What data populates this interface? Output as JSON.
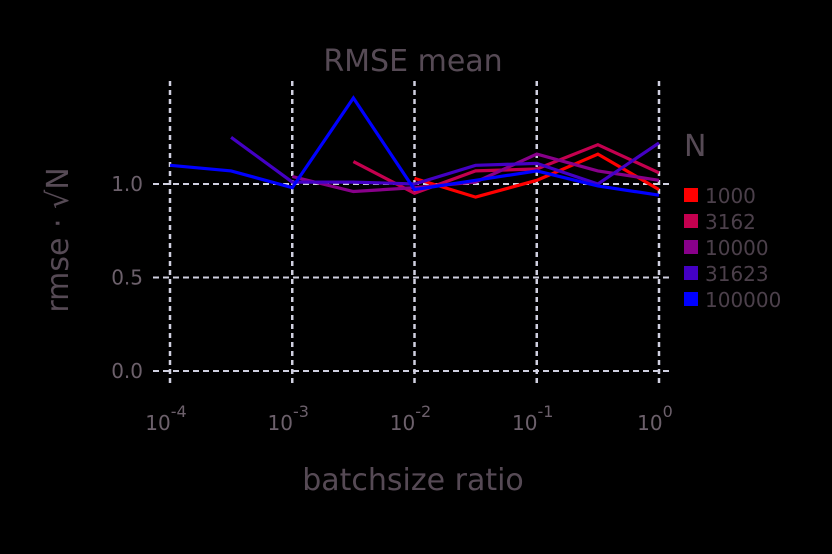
{
  "chart_data": {
    "type": "line",
    "title": "RMSE mean",
    "xlabel": "batchsize ratio",
    "ylabel": "rmse · √N",
    "xscale": "log10",
    "xlim_log10": [
      -4,
      0
    ],
    "ylim": [
      0.0,
      1.5
    ],
    "grid": true,
    "legend_position": "right",
    "legend_title": "N",
    "x_ticks": [
      {
        "base": "10",
        "exp": "-4",
        "log": -4
      },
      {
        "base": "10",
        "exp": "-3",
        "log": -3
      },
      {
        "base": "10",
        "exp": "-2",
        "log": -2
      },
      {
        "base": "10",
        "exp": "-1",
        "log": -1
      },
      {
        "base": "10",
        "exp": "0",
        "log": 0
      }
    ],
    "y_ticks": [
      {
        "label": "0.0",
        "value": 0.0
      },
      {
        "label": "0.5",
        "value": 0.5
      },
      {
        "label": "1.0",
        "value": 1.0
      }
    ],
    "series": [
      {
        "name": "1000",
        "color": "#ff0000",
        "x_log10": [
          -2,
          -1.5,
          -1,
          -0.5,
          0
        ],
        "values": [
          1.03,
          0.93,
          1.02,
          1.16,
          0.97
        ]
      },
      {
        "name": "3162",
        "color": "#c4004f",
        "x_log10": [
          -2.5,
          -2,
          -1.5,
          -1,
          -0.5,
          0
        ],
        "values": [
          1.12,
          0.95,
          1.07,
          1.08,
          1.21,
          1.06
        ]
      },
      {
        "name": "10000",
        "color": "#88008a",
        "x_log10": [
          -3,
          -2.5,
          -2,
          -1.5,
          -1,
          -0.5,
          0
        ],
        "values": [
          1.04,
          0.96,
          0.98,
          1.01,
          1.16,
          1.07,
          1.02
        ]
      },
      {
        "name": "31623",
        "color": "#4400c4",
        "x_log10": [
          -3.5,
          -3,
          -2.5,
          -2,
          -1.5,
          -1,
          -0.5,
          0
        ],
        "values": [
          1.25,
          1.01,
          1.01,
          1.0,
          1.1,
          1.11,
          1.0,
          1.22
        ]
      },
      {
        "name": "100000",
        "color": "#0000ff",
        "x_log10": [
          -4,
          -3.5,
          -3,
          -2.5,
          -2,
          -1.5,
          -1,
          -0.5,
          0
        ],
        "values": [
          1.1,
          1.07,
          0.98,
          1.46,
          0.97,
          1.02,
          1.07,
          0.99,
          0.94
        ]
      }
    ]
  }
}
